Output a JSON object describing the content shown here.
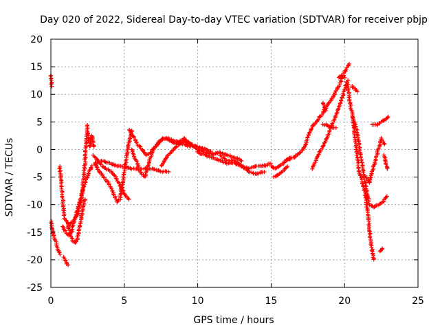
{
  "chart_data": {
    "type": "scatter",
    "title": "Day 020 of 2022, Sidereal Day-to-day VTEC variation (SDTVAR) for receiver pbjp",
    "xlabel": "GPS time / hours",
    "ylabel": "SDTVAR / TECUs",
    "xlim": [
      0,
      25
    ],
    "ylim": [
      -25,
      20
    ],
    "xticks": [
      0,
      5,
      10,
      15,
      20,
      25
    ],
    "yticks": [
      -25,
      -20,
      -15,
      -10,
      -5,
      0,
      5,
      10,
      15,
      20
    ],
    "grid": true,
    "marker": "+",
    "series": [
      {
        "name": "SDTVAR",
        "color": "#ff0000",
        "tracks": [
          {
            "x": [
              0.0,
              0.05
            ],
            "y": [
              13.5,
              11.5
            ]
          },
          {
            "x": [
              0.0,
              0.15,
              0.3,
              0.45,
              0.6
            ],
            "y": [
              -13,
              -15,
              -16.5,
              -18,
              -19
            ]
          },
          {
            "x": [
              0.6,
              0.7,
              0.8,
              0.9
            ],
            "y": [
              -3,
              -6,
              -9,
              -12
            ]
          },
          {
            "x": [
              0.9,
              1.05,
              1.15
            ],
            "y": [
              -19.5,
              -20.5,
              -21
            ]
          },
          {
            "x": [
              0.8,
              1.0,
              1.2,
              1.4,
              1.6,
              1.8,
              2.0,
              2.2,
              2.4,
              2.6,
              2.8
            ],
            "y": [
              -14,
              -15,
              -15.5,
              -15,
              -13,
              -11,
              -9,
              -7,
              -5.5,
              -4,
              -3
            ]
          },
          {
            "x": [
              0.9,
              1.1,
              1.3,
              1.5,
              1.7,
              1.9,
              2.1,
              2.3
            ],
            "y": [
              -12.5,
              -13,
              -15,
              -16.5,
              -17,
              -15,
              -12,
              -9
            ]
          },
          {
            "x": [
              1.2,
              1.5,
              1.8,
              2.1,
              2.3,
              2.5
            ],
            "y": [
              -14,
              -13,
              -12,
              -9,
              -3,
              4.5
            ]
          },
          {
            "x": [
              2.5,
              2.65,
              2.8,
              2.95
            ],
            "y": [
              3,
              0.5,
              2.5,
              0.5
            ]
          },
          {
            "x": [
              2.9,
              3.2,
              3.5,
              3.8,
              4.1,
              4.4,
              4.7,
              5.0,
              5.3
            ],
            "y": [
              -1,
              -2,
              -3,
              -3.5,
              -4,
              -5,
              -6.5,
              -8,
              -9
            ]
          },
          {
            "x": [
              3.0,
              3.3,
              3.6,
              3.9,
              4.2,
              4.5,
              4.7,
              4.9,
              5.1,
              5.3,
              5.5
            ],
            "y": [
              -2.5,
              -4,
              -5,
              -6,
              -7.5,
              -9.5,
              -9,
              -6,
              -2,
              1,
              3.5
            ]
          },
          {
            "x": [
              3.0,
              3.5,
              4.0,
              4.5,
              5.0,
              5.5,
              6.0,
              6.5,
              7.0,
              7.5,
              8.0
            ],
            "y": [
              -2.5,
              -2,
              -2.5,
              -3,
              -3,
              -3.5,
              -3.5,
              -3.5,
              -3.5,
              -4,
              -4
            ]
          },
          {
            "x": [
              5.3,
              5.6,
              5.9,
              6.2,
              6.5,
              6.8,
              7.1,
              7.4,
              7.7,
              8.0,
              8.5,
              9.0,
              9.5
            ],
            "y": [
              3.5,
              2.5,
              1,
              0,
              -1,
              -0.5,
              0.5,
              1.5,
              2,
              2,
              1.5,
              1,
              0.5
            ]
          },
          {
            "x": [
              5.5,
              5.8,
              6.1,
              6.4,
              6.7,
              7.0,
              7.3,
              7.6,
              7.9,
              8.2,
              8.5,
              8.8,
              9.1,
              9.5,
              10.0,
              10.5,
              11.0
            ],
            "y": [
              0,
              -2,
              -4,
              -5,
              -2,
              0,
              1,
              2,
              2,
              1.5,
              1,
              1.5,
              2,
              1,
              0.5,
              0,
              -0.5
            ]
          },
          {
            "x": [
              7.5,
              8.0,
              8.5,
              9.0,
              9.5,
              10.0,
              10.5,
              11.0,
              11.5,
              12.0,
              12.5,
              13.0
            ],
            "y": [
              -3,
              -1,
              0.5,
              1.5,
              1,
              0,
              -0.5,
              -1,
              -0.5,
              -1,
              -1.5,
              -2
            ]
          },
          {
            "x": [
              10.0,
              10.5,
              11.0,
              11.5,
              12.0,
              12.5,
              13.0,
              13.5,
              14.0,
              14.5,
              15.0
            ],
            "y": [
              -0.5,
              -1,
              -1.5,
              -2,
              -2.5,
              -2.5,
              -3,
              -3.5,
              -3,
              -3,
              -2.5
            ]
          },
          {
            "x": [
              11.5,
              12.0,
              12.5,
              13.0,
              13.5,
              14.0,
              14.5
            ],
            "y": [
              -1,
              -2,
              -2,
              -3,
              -4,
              -4.5,
              -4
            ]
          },
          {
            "x": [
              15.0,
              15.3,
              15.6,
              16.0,
              16.3
            ],
            "y": [
              -3,
              -3.5,
              -3,
              -2,
              -1.5
            ]
          },
          {
            "x": [
              15.2,
              15.5,
              15.8,
              16.1
            ],
            "y": [
              -5,
              -4.5,
              -4,
              -3
            ]
          },
          {
            "x": [
              16.0,
              16.5,
              17.0,
              17.3,
              17.6,
              17.9,
              18.2,
              18.5,
              18.8,
              19.1,
              19.4,
              19.7,
              20.0,
              20.3
            ],
            "y": [
              -2,
              -1.5,
              -0.5,
              0.5,
              3,
              4.5,
              5.5,
              6.5,
              8,
              9,
              10.5,
              12,
              14,
              15.5
            ]
          },
          {
            "x": [
              17.8,
              18.1,
              18.4,
              18.7,
              19.0,
              19.3,
              19.6,
              19.9,
              20.2
            ],
            "y": [
              -3.5,
              -1.5,
              0,
              1.5,
              3.5,
              5.5,
              7.5,
              10,
              12.5
            ]
          },
          {
            "x": [
              18.5,
              18.8,
              19.1,
              19.4
            ],
            "y": [
              4.5,
              4.5,
              4,
              4
            ]
          },
          {
            "x": [
              18.5,
              18.7
            ],
            "y": [
              8.5,
              7
            ]
          },
          {
            "x": [
              19.6,
              19.8,
              20.0
            ],
            "y": [
              13,
              13.5,
              13
            ]
          },
          {
            "x": [
              20.5,
              20.7,
              20.9
            ],
            "y": [
              11.5,
              11,
              10.5
            ]
          },
          {
            "x": [
              20.2,
              20.4,
              20.6,
              20.8,
              21.0,
              21.2,
              21.4,
              21.6,
              21.8,
              22.0
            ],
            "y": [
              12,
              8,
              5,
              0,
              -4,
              -6,
              -8,
              -12,
              -17,
              -20
            ]
          },
          {
            "x": [
              20.5,
              20.8,
              21.1,
              21.4,
              21.7,
              22.0,
              22.3,
              22.6,
              22.9
            ],
            "y": [
              6,
              4,
              -1,
              -6,
              -10,
              -10.5,
              -10,
              -9.5,
              -8.5
            ]
          },
          {
            "x": [
              21.5,
              21.7,
              21.9,
              22.1,
              22.3,
              22.5,
              22.7
            ],
            "y": [
              -5,
              -6,
              -4,
              -2,
              0,
              2,
              1
            ]
          },
          {
            "x": [
              21.9,
              22.2,
              22.5,
              22.8,
              23.0
            ],
            "y": [
              4.5,
              4.5,
              5,
              5.5,
              6
            ]
          },
          {
            "x": [
              22.7,
              22.9
            ],
            "y": [
              -1,
              -3.5
            ]
          },
          {
            "x": [
              22.4,
              22.6
            ],
            "y": [
              -18.5,
              -18
            ]
          }
        ]
      }
    ]
  }
}
